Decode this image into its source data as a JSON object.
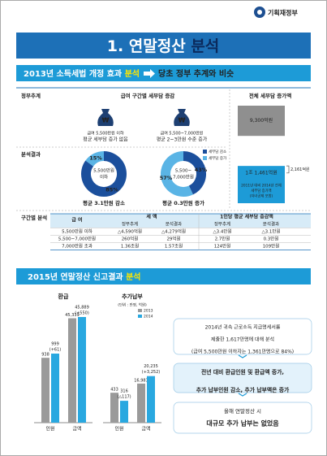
{
  "header": {
    "logo": "기획재정부"
  },
  "title": {
    "text": "1. 연말정산 ",
    "highlight": "분석"
  },
  "section1": {
    "lead": "2013년 소득세법 개정 효과 ",
    "highlight": "분석",
    "result": "당초 정부 추계와 비슷"
  },
  "row_labels": [
    "정부추계",
    "분석결과",
    "구간별 분석"
  ],
  "column_headers": [
    "급여 구간별 세부담 증감",
    "전체 세부담 증가액"
  ],
  "estimates": [
    {
      "range": "급여 5,500만원 이하",
      "note": "평균 세부담 증가 없음"
    },
    {
      "range": "급여 5,500~7,000만원",
      "note": "평균 2~3만원 수준 증가"
    }
  ],
  "donut_legend": [
    {
      "name": "세부담 감소",
      "color": "#1b4f9c"
    },
    {
      "name": "세부담 증가",
      "color": "#5ab4e5"
    }
  ],
  "donuts": [
    {
      "center": [
        "5,500만원",
        "이하"
      ],
      "values": [
        85,
        15
      ],
      "value_labels": [
        "85%",
        "15%"
      ],
      "caption": "평균 3.1만원 감소"
    },
    {
      "center": [
        "5,500~",
        "7,000만원"
      ],
      "values": [
        43,
        57
      ],
      "value_labels": [
        "43%",
        "57%"
      ],
      "caption": "평균 0.3만원 증가"
    }
  ],
  "total": {
    "base": 9300,
    "base_label": "9,300억원",
    "total": 11461,
    "total_label": "1조 1,461억원",
    "diff": 2161,
    "diff_label": "2,161억원",
    "note": [
      "2011년 대비 2014년 전체",
      "세부담 증가액",
      "(자녀공제 포함)"
    ]
  },
  "table": {
    "headers": [
      "급 여",
      "세 액",
      "1인당 평균 세부담 증감액"
    ],
    "subheaders": [
      "정부추계",
      "분석결과",
      "정부추계",
      "분석결과"
    ],
    "rows": [
      [
        "5,500만원 이하",
        "△4,590억원",
        "△4,279억원",
        "△3.4만원",
        "△3.1만원"
      ],
      [
        "5,500~7,000만원",
        "260억원",
        "29억원",
        "2.7만원",
        "0.3만원"
      ],
      [
        "7,000만원 초과",
        "1.36조원",
        "1.57조원",
        "124만원",
        "109만원"
      ]
    ]
  },
  "section2": {
    "lead": "2015년 연말정산 신고결과 ",
    "highlight": "분석"
  },
  "bar_legend": [
    {
      "name": "2013",
      "color": "#9a9a9a"
    },
    {
      "name": "2014",
      "color": "#29a8e0"
    }
  ],
  "unit": "(단위 : 만명, 억원)",
  "charts": [
    {
      "title": "환급",
      "categories": [
        "인원",
        "금액"
      ],
      "series": [
        {
          "values": [
            938,
            45339
          ],
          "value_labels": [
            "938",
            "45,339"
          ]
        },
        {
          "values": [
            999,
            45889
          ],
          "value_labels": [
            "999",
            "45,889"
          ]
        }
      ],
      "annotations": [
        "(+61)",
        "(+550)"
      ]
    },
    {
      "title": "추가납부",
      "categories": [
        "인원",
        "금액"
      ],
      "series": [
        {
          "values": [
            433,
            16983
          ],
          "value_labels": [
            "433",
            "16,983"
          ]
        },
        {
          "values": [
            316,
            20235
          ],
          "value_labels": [
            "316",
            "20,235"
          ]
        }
      ],
      "annotations": [
        "(△117)",
        "(+3,252)"
      ]
    }
  ],
  "notes": [
    [
      "2014년 귀속 근로소득 지급명세서를",
      "제출한 1,617만명에 대해 분석",
      "(급여 5,500만원 이하자는 1,361만명으로 84%)"
    ],
    [
      "전년 대비 환급인원 및 환급액 증가,",
      "추가 납부인원 감소, 추가 납부액은 증가"
    ],
    [
      "올해 연말정산 시",
      "대규모 추가 납부는 없었음"
    ]
  ]
}
